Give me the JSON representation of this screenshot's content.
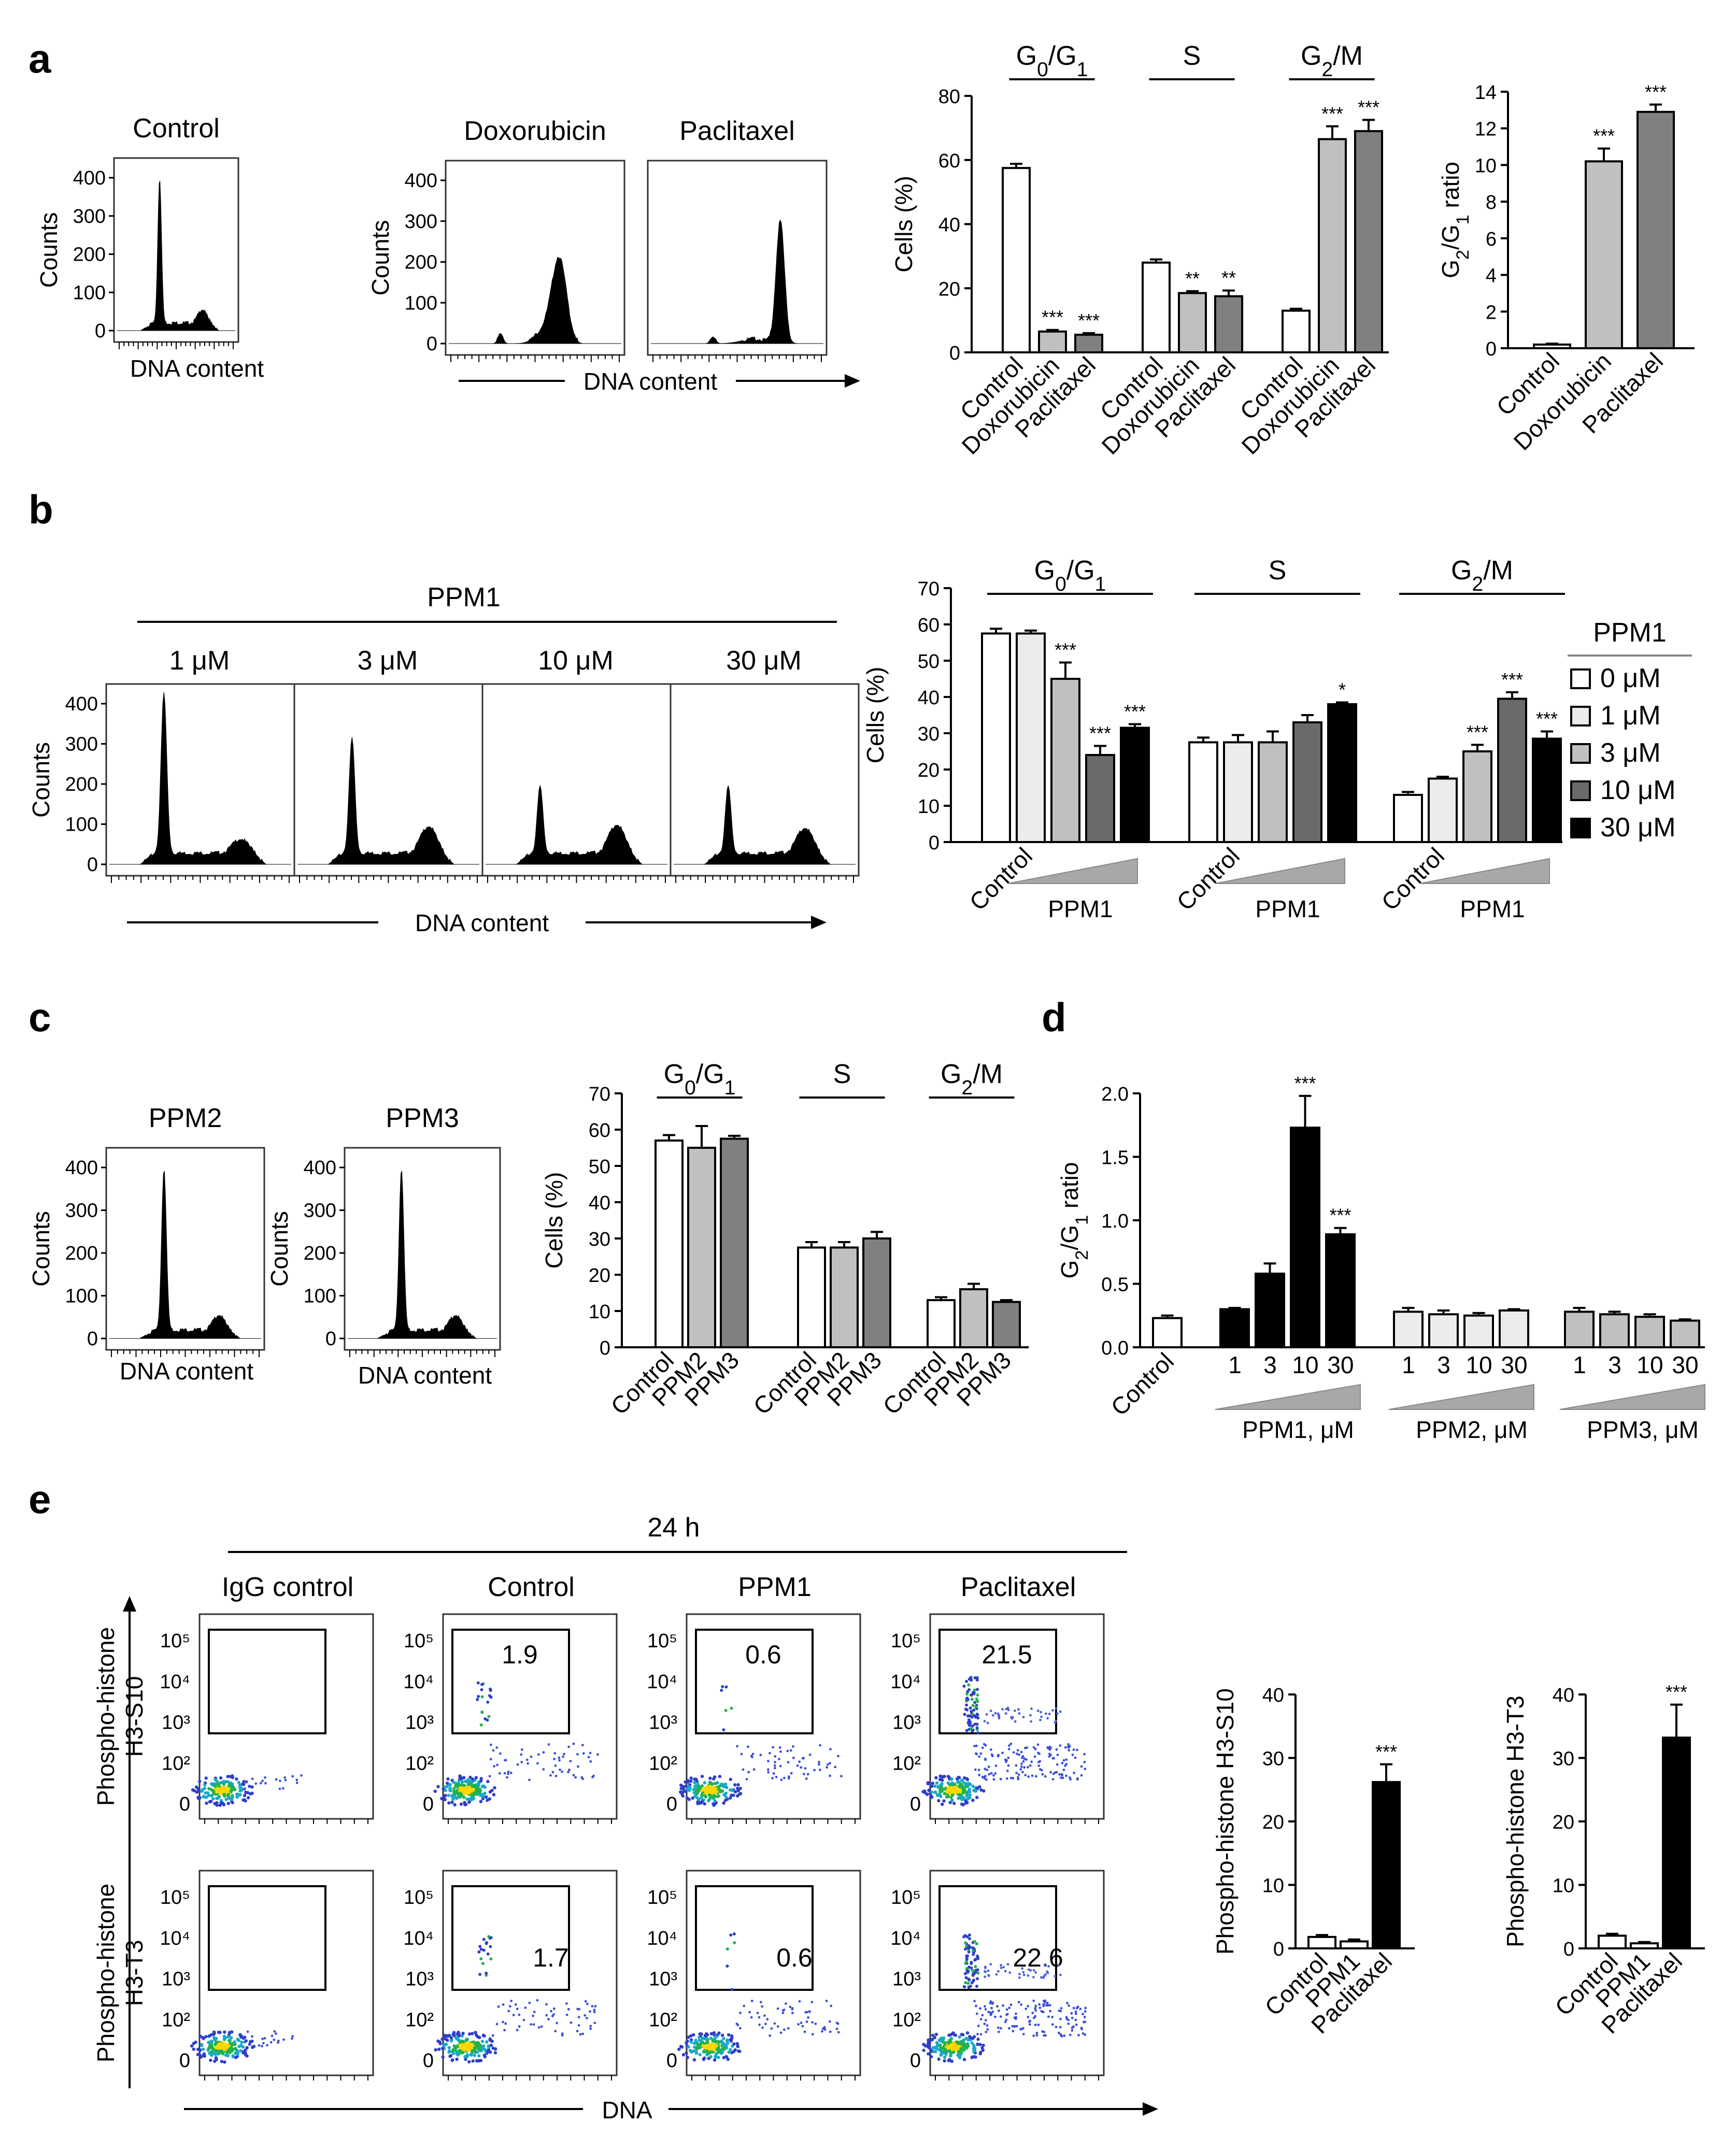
{
  "panels": {
    "a": "a",
    "b": "b",
    "c": "c",
    "d": "d",
    "e": "e"
  },
  "colors": {
    "white": "#ffffff",
    "lightest": "#ececec",
    "light": "#c0c0c0",
    "mid": "#808080",
    "dark": "#6a6a6a",
    "black": "#000000"
  },
  "labels": {
    "counts": "Counts",
    "dna_content": "DNA content",
    "cells_pct": "Cells (%)",
    "g2g1_ratio": "G2/G1 ratio",
    "ppm1": "PPM1",
    "dna": "DNA",
    "h24": "24 h",
    "phospho_s10": "Phospho-histone H3-S10",
    "phospho_t3": "Phospho-histone H3-T3",
    "phospho_s10_row": [
      "Phospho-histone",
      "H3-S10"
    ],
    "phospho_t3_row": [
      "Phospho-histone",
      "H3-T3"
    ],
    "pct_unit": "%"
  },
  "histograms": {
    "a": [
      "Control",
      "Doxorubicin",
      "Paclitaxel"
    ],
    "b": [
      "1 μM",
      "3 μM",
      "10 μM",
      "30 μM"
    ],
    "c": [
      "PPM2",
      "PPM3"
    ],
    "yticks": [
      "0",
      "100",
      "200",
      "300",
      "400"
    ]
  },
  "scatter": {
    "columns": [
      "IgG control",
      "Control",
      "PPM1",
      "Paclitaxel"
    ],
    "yticks": [
      "0",
      "10²",
      "10³",
      "10⁴",
      "10⁵"
    ],
    "s10_values": [
      "",
      "1.9",
      "0.6",
      "21.5"
    ],
    "t3_values": [
      "",
      "1.7",
      "0.6",
      "22.6"
    ]
  },
  "chart_data": [
    {
      "id": "a-cellcycle",
      "type": "bar",
      "title": "",
      "ylabel": "Cells (%)",
      "ylim": [
        0,
        80
      ],
      "yticks": [
        0,
        20,
        40,
        60,
        80
      ],
      "groups": [
        "G0/G1",
        "S",
        "G2/M"
      ],
      "categories": [
        "Control",
        "Doxorubicin",
        "Paclitaxel"
      ],
      "series": [
        {
          "name": "Control",
          "values": [
            57.5,
            28,
            13
          ],
          "errors": [
            1.3,
            1,
            0.6
          ]
        },
        {
          "name": "Doxorubicin",
          "values": [
            6.5,
            18.5,
            66.5
          ],
          "errors": [
            0.5,
            0.6,
            4
          ]
        },
        {
          "name": "Paclitaxel",
          "values": [
            5.5,
            17.5,
            69
          ],
          "errors": [
            0.5,
            1.8,
            3.5
          ]
        }
      ],
      "significance": [
        [
          "",
          "",
          ""
        ],
        [
          "***",
          "**",
          "***"
        ],
        [
          "***",
          "**",
          "***"
        ]
      ]
    },
    {
      "id": "a-ratio",
      "type": "bar",
      "ylabel": "G2/G1 ratio",
      "ylim": [
        0,
        14
      ],
      "yticks": [
        0,
        2,
        4,
        6,
        8,
        10,
        12,
        14
      ],
      "categories": [
        "Control",
        "Doxorubicin",
        "Paclitaxel"
      ],
      "values": [
        0.2,
        10.2,
        12.9
      ],
      "errors": [
        0.05,
        0.7,
        0.4
      ],
      "significance": [
        "",
        "***",
        "***"
      ]
    },
    {
      "id": "b-cellcycle",
      "type": "bar",
      "ylabel": "Cells (%)",
      "ylim": [
        0,
        70
      ],
      "yticks": [
        0,
        10,
        20,
        30,
        40,
        50,
        60,
        70
      ],
      "groups": [
        "G0/G1",
        "S",
        "G2/M"
      ],
      "legend_title": "PPM1",
      "series": [
        {
          "name": "0 μM",
          "values": [
            57.5,
            27.5,
            13
          ],
          "errors": [
            1.3,
            1.3,
            0.8
          ]
        },
        {
          "name": "1 μM",
          "values": [
            57.5,
            27.5,
            17.5
          ],
          "errors": [
            0.8,
            2,
            0.5
          ]
        },
        {
          "name": "3 μM",
          "values": [
            45,
            27.5,
            25
          ],
          "errors": [
            4.5,
            3,
            1.8
          ]
        },
        {
          "name": "10 μM",
          "values": [
            24,
            33,
            39.5
          ],
          "errors": [
            2.5,
            2,
            1.8
          ]
        },
        {
          "name": "30 μM",
          "values": [
            31.5,
            38,
            28.5
          ],
          "errors": [
            1,
            0.5,
            2
          ]
        }
      ],
      "significance": [
        [
          "",
          "",
          ""
        ],
        [
          "",
          "",
          ""
        ],
        [
          "***",
          "",
          "***"
        ],
        [
          "***",
          "",
          "***"
        ],
        [
          "***",
          "*",
          "***"
        ]
      ],
      "xlabels": [
        "Control",
        "PPM1"
      ]
    },
    {
      "id": "c-cellcycle",
      "type": "bar",
      "ylabel": "Cells (%)",
      "ylim": [
        0,
        70
      ],
      "yticks": [
        0,
        10,
        20,
        30,
        40,
        50,
        60,
        70
      ],
      "groups": [
        "G0/G1",
        "S",
        "G2/M"
      ],
      "categories": [
        "Control",
        "PPM2",
        "PPM3"
      ],
      "series": [
        {
          "name": "Control",
          "values": [
            57,
            27.5,
            13
          ],
          "errors": [
            1.5,
            1.5,
            0.8
          ]
        },
        {
          "name": "PPM2",
          "values": [
            55,
            27.5,
            16
          ],
          "errors": [
            6,
            1.5,
            1.5
          ]
        },
        {
          "name": "PPM3",
          "values": [
            57.5,
            30,
            12.5
          ],
          "errors": [
            0.8,
            1.8,
            0.5
          ]
        }
      ]
    },
    {
      "id": "d-ratio",
      "type": "bar",
      "ylabel": "G2/G1 ratio",
      "ylim": [
        0,
        2.0
      ],
      "yticks": [
        "0.0",
        "0.5",
        "1.0",
        "1.5",
        "2.0"
      ],
      "control": {
        "label": "Control",
        "value": 0.23,
        "error": 0.02
      },
      "doses": [
        "1",
        "3",
        "10",
        "30"
      ],
      "groups": [
        {
          "name": "PPM1, μM",
          "values": [
            0.3,
            0.58,
            1.73,
            0.89
          ],
          "errors": [
            0.01,
            0.08,
            0.25,
            0.05
          ],
          "significance": [
            "",
            "",
            "***",
            "***"
          ]
        },
        {
          "name": "PPM2, μM",
          "values": [
            0.28,
            0.26,
            0.25,
            0.29
          ],
          "errors": [
            0.03,
            0.03,
            0.02,
            0.01
          ],
          "significance": [
            "",
            "",
            "",
            ""
          ]
        },
        {
          "name": "PPM3, μM",
          "values": [
            0.28,
            0.26,
            0.24,
            0.21
          ],
          "errors": [
            0.03,
            0.02,
            0.02,
            0.01
          ],
          "significance": [
            "",
            "",
            "",
            ""
          ]
        }
      ]
    },
    {
      "id": "e-s10",
      "type": "bar",
      "ylabel": "Phospho-histone H3-S10",
      "ylim": [
        0,
        40
      ],
      "yticks": [
        0,
        10,
        20,
        30,
        40
      ],
      "categories": [
        "Control",
        "PPM1",
        "Paclitaxel"
      ],
      "values": [
        1.8,
        1.1,
        26.2
      ],
      "errors": [
        0.3,
        0.3,
        2.8
      ],
      "significance": [
        "",
        "",
        "***"
      ]
    },
    {
      "id": "e-t3",
      "type": "bar",
      "ylabel": "Phospho-histone H3-T3",
      "ylim": [
        0,
        40
      ],
      "yticks": [
        0,
        10,
        20,
        30,
        40
      ],
      "categories": [
        "Control",
        "PPM1",
        "Paclitaxel"
      ],
      "values": [
        2.0,
        0.8,
        33.2
      ],
      "errors": [
        0.3,
        0.2,
        5.2
      ],
      "significance": [
        "",
        "",
        "***"
      ]
    }
  ]
}
